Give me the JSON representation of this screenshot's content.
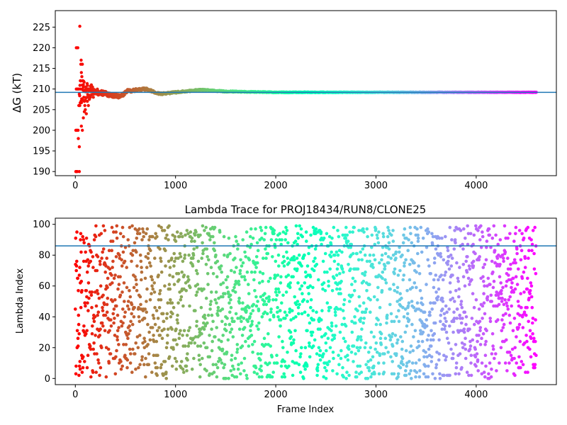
{
  "chart_data": [
    {
      "type": "scatter",
      "title": "",
      "xlabel": "",
      "ylabel": "ΔG (kT)",
      "xlim": [
        -200,
        4800
      ],
      "ylim": [
        189,
        229
      ],
      "xticks": [
        0,
        1000,
        2000,
        3000,
        4000
      ],
      "yticks": [
        190,
        195,
        200,
        205,
        210,
        215,
        220,
        225
      ],
      "colormap": "rainbow",
      "reference_line": 209.2,
      "reference_color": "#1f77b4",
      "n_frames": 4600,
      "series": [
        {
          "early_scatter": [
            [
              5,
              190
            ],
            [
              10,
              190
            ],
            [
              20,
              190
            ],
            [
              40,
              190
            ],
            [
              5,
              200
            ],
            [
              12,
              200
            ],
            [
              20,
              200
            ],
            [
              28,
              200
            ],
            [
              10,
              210
            ],
            [
              25,
              210
            ],
            [
              30,
              210
            ],
            [
              48,
              210
            ],
            [
              10,
              220
            ],
            [
              25,
              220
            ],
            [
              45,
              225.2
            ],
            [
              30,
              198
            ],
            [
              40,
              196
            ],
            [
              35,
              206
            ],
            [
              45,
              206
            ],
            [
              50,
              212
            ],
            [
              60,
              214
            ],
            [
              55,
              216
            ],
            [
              58,
              217
            ],
            [
              70,
              216
            ],
            [
              65,
              213
            ],
            [
              75,
              212
            ],
            [
              80,
              211
            ],
            [
              85,
              208
            ],
            [
              90,
              207
            ],
            [
              95,
              206
            ],
            [
              100,
              205
            ],
            [
              110,
              204
            ],
            [
              120,
              207
            ],
            [
              60,
              201
            ],
            [
              70,
              200
            ],
            [
              80,
              203
            ],
            [
              90,
              204.5
            ],
            [
              130,
              206
            ],
            [
              140,
              207.5
            ],
            [
              150,
              208
            ],
            [
              160,
              211
            ],
            [
              170,
              210.5
            ],
            [
              180,
              208
            ]
          ],
          "envelope_checkpoints": [
            [
              50,
              6.0
            ],
            [
              100,
              4.5
            ],
            [
              150,
              2.8
            ],
            [
              200,
              1.5
            ],
            [
              300,
              1.2
            ],
            [
              400,
              1.0
            ],
            [
              500,
              0.8
            ],
            [
              700,
              0.6
            ],
            [
              1000,
              0.4
            ],
            [
              1500,
              0.3
            ],
            [
              2000,
              0.2
            ],
            [
              3000,
              0.15
            ],
            [
              4600,
              0.1
            ]
          ],
          "mean_checkpoints": [
            [
              50,
              209.5
            ],
            [
              200,
              209.4
            ],
            [
              300,
              208.8
            ],
            [
              450,
              208.2
            ],
            [
              520,
              209.5
            ],
            [
              700,
              210.0
            ],
            [
              850,
              208.8
            ],
            [
              1000,
              209.2
            ],
            [
              1250,
              209.8
            ],
            [
              1500,
              209.4
            ],
            [
              2000,
              209.2
            ],
            [
              4600,
              209.2
            ]
          ]
        }
      ]
    },
    {
      "type": "scatter",
      "title": "Lambda Trace for PROJ18434/RUN8/CLONE25",
      "xlabel": "Frame Index",
      "ylabel": "Lambda Index",
      "xlim": [
        -200,
        4800
      ],
      "ylim": [
        -4,
        104
      ],
      "xticks": [
        0,
        1000,
        2000,
        3000,
        4000
      ],
      "yticks": [
        0,
        20,
        40,
        60,
        80,
        100
      ],
      "colormap": "rainbow",
      "reference_line": 86,
      "reference_color": "#1f77b4",
      "n_frames": 4600,
      "lambda_range": [
        0,
        99
      ]
    }
  ]
}
